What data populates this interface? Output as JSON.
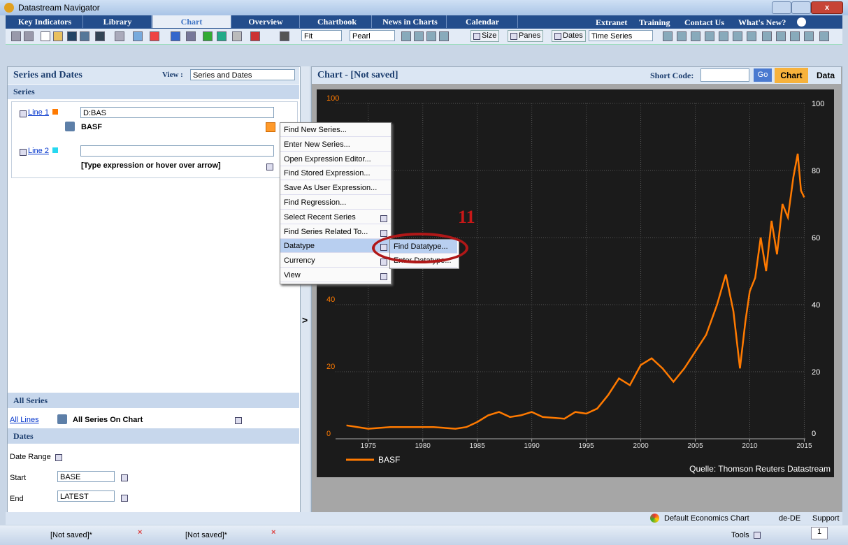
{
  "window": {
    "title": "Datastream Navigator"
  },
  "tabs": [
    "Key Indicators",
    "Library",
    "Chart",
    "Overview",
    "Chartbook",
    "News in Charts",
    "Calendar"
  ],
  "links": [
    "Extranet",
    "Training",
    "Contact Us",
    "What's New?"
  ],
  "toolbar": {
    "fit": "Fit",
    "style": "Pearl",
    "size": "Size",
    "panes": "Panes",
    "dates": "Dates",
    "chart_type": "Time Series"
  },
  "left": {
    "title": "Series and Dates",
    "view_label": "View :",
    "view": "Series and Dates",
    "series_header": "Series",
    "line1": {
      "label": "Line 1",
      "expr": "D:BAS",
      "name": "BASF"
    },
    "line2": {
      "label": "Line 2",
      "expr": "",
      "hint": "[Type expression or hover over arrow]"
    },
    "all_series_header": "All Series",
    "all_lines": "All Lines",
    "all_series_on_chart": "All Series On Chart",
    "dates_header": "Dates",
    "date_range": "Date Range",
    "start_label": "Start",
    "start": "BASE",
    "end_label": "End",
    "end": "LATEST"
  },
  "right": {
    "title": "Chart - [Not saved]",
    "short_code": "Short Code:",
    "go": "Go",
    "chart_tab": "Chart",
    "data_tab": "Data"
  },
  "chart_data": {
    "type": "line",
    "x": [
      1973,
      1975,
      1977,
      1979,
      1981,
      1983,
      1984,
      1985,
      1986,
      1987,
      1988,
      1989,
      1990,
      1991,
      1993,
      1994,
      1995,
      1996,
      1997,
      1998,
      1999,
      2000,
      2001,
      2002,
      2003,
      2004,
      2005,
      2006,
      2007,
      2007.8,
      2008.5,
      2009.1,
      2009.6,
      2010,
      2010.5,
      2011,
      2011.5,
      2012,
      2012.5,
      2013,
      2013.5,
      2014,
      2014.4,
      2014.7,
      2015
    ],
    "series": [
      {
        "name": "BASF",
        "color": "#ff7a00",
        "values": [
          4,
          3,
          3.5,
          3.5,
          3.5,
          3,
          3.5,
          5,
          7,
          8,
          6.5,
          7,
          8,
          6.5,
          6,
          8,
          7.5,
          9,
          13,
          18,
          16,
          22,
          24,
          21,
          17,
          21,
          26,
          31,
          40,
          49,
          38,
          21,
          35,
          44,
          48,
          60,
          50,
          65,
          55,
          70,
          66,
          78,
          85,
          74,
          72
        ]
      }
    ],
    "xlim": [
      1972,
      2015.1
    ],
    "xticks": [
      1975,
      1980,
      1985,
      1990,
      1995,
      2000,
      2005,
      2010,
      2015
    ],
    "ylim": [
      0,
      100
    ],
    "yticks": [
      0,
      20,
      40,
      60,
      80,
      100
    ],
    "y2lim": [
      0,
      100
    ],
    "y2ticks": [
      0,
      20,
      40,
      60,
      80,
      100
    ],
    "grid": true,
    "source": "Quelle: Thomson Reuters Datastream"
  },
  "menu": [
    "Find New Series...",
    "Enter New Series...",
    "Open Expression Editor...",
    "Find Stored Expression...",
    "Save As User Expression...",
    "Find Regression...",
    "Select Recent Series",
    "Find Series Related To...",
    "Datatype",
    "Currency",
    "View"
  ],
  "submenu": [
    "Find Datatype...",
    "Enter Datatype..."
  ],
  "annotation": "11",
  "status": {
    "default_chart": "Default Economics Chart",
    "locale": "de-DE",
    "support": "Support",
    "tools": "Tools",
    "page": "1"
  },
  "doc_tabs": [
    "[Not saved]*",
    "[Not saved]*"
  ]
}
